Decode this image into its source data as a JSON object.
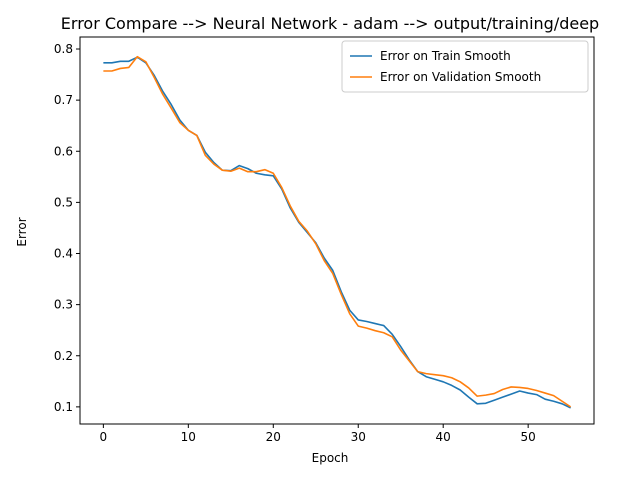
{
  "chart_data": {
    "type": "line",
    "title": "Error Compare --> Neural Network - adam --> output/training/deep",
    "xlabel": "Epoch",
    "ylabel": "Error",
    "xlim": [
      -2.75,
      57.75
    ],
    "ylim": [
      0.0665,
      0.8235
    ],
    "grid": false,
    "legend_position": "upper-right",
    "x_ticks": [
      0,
      10,
      20,
      30,
      40,
      50
    ],
    "y_ticks": [
      0.1,
      0.2,
      0.3,
      0.4,
      0.5,
      0.6,
      0.7,
      0.8
    ],
    "x_tick_labels": [
      "0",
      "10",
      "20",
      "30",
      "40",
      "50"
    ],
    "y_tick_labels": [
      "0.1",
      "0.2",
      "0.3",
      "0.4",
      "0.5",
      "0.6",
      "0.7",
      "0.8"
    ],
    "x": [
      0,
      1,
      2,
      3,
      4,
      5,
      6,
      7,
      8,
      9,
      10,
      11,
      12,
      13,
      14,
      15,
      16,
      17,
      18,
      19,
      20,
      21,
      22,
      23,
      24,
      25,
      26,
      27,
      28,
      29,
      30,
      31,
      32,
      33,
      34,
      35,
      36,
      37,
      38,
      39,
      40,
      41,
      42,
      43,
      44,
      45,
      46,
      47,
      48,
      49,
      50,
      51,
      52,
      53,
      54,
      55
    ],
    "series": [
      {
        "name": "Error on Train Smooth",
        "color": "#1f77b4",
        "values": [
          0.773,
          0.773,
          0.776,
          0.776,
          0.784,
          0.773,
          0.748,
          0.717,
          0.691,
          0.661,
          0.641,
          0.631,
          0.598,
          0.578,
          0.563,
          0.562,
          0.572,
          0.566,
          0.557,
          0.554,
          0.552,
          0.526,
          0.489,
          0.461,
          0.441,
          0.421,
          0.391,
          0.367,
          0.325,
          0.289,
          0.27,
          0.267,
          0.263,
          0.259,
          0.242,
          0.218,
          0.192,
          0.169,
          0.159,
          0.154,
          0.149,
          0.142,
          0.133,
          0.119,
          0.106,
          0.107,
          0.113,
          0.119,
          0.125,
          0.131,
          0.127,
          0.124,
          0.115,
          0.111,
          0.106,
          0.098
        ]
      },
      {
        "name": "Error on Validation Smooth",
        "color": "#ff7f0e",
        "values": [
          0.757,
          0.757,
          0.762,
          0.764,
          0.785,
          0.775,
          0.744,
          0.711,
          0.684,
          0.656,
          0.641,
          0.631,
          0.592,
          0.575,
          0.563,
          0.561,
          0.567,
          0.56,
          0.56,
          0.564,
          0.557,
          0.529,
          0.493,
          0.463,
          0.444,
          0.419,
          0.386,
          0.361,
          0.32,
          0.282,
          0.258,
          0.254,
          0.249,
          0.245,
          0.237,
          0.211,
          0.19,
          0.169,
          0.165,
          0.163,
          0.161,
          0.157,
          0.149,
          0.137,
          0.121,
          0.123,
          0.126,
          0.134,
          0.139,
          0.138,
          0.136,
          0.132,
          0.127,
          0.122,
          0.111,
          0.1
        ]
      }
    ]
  }
}
